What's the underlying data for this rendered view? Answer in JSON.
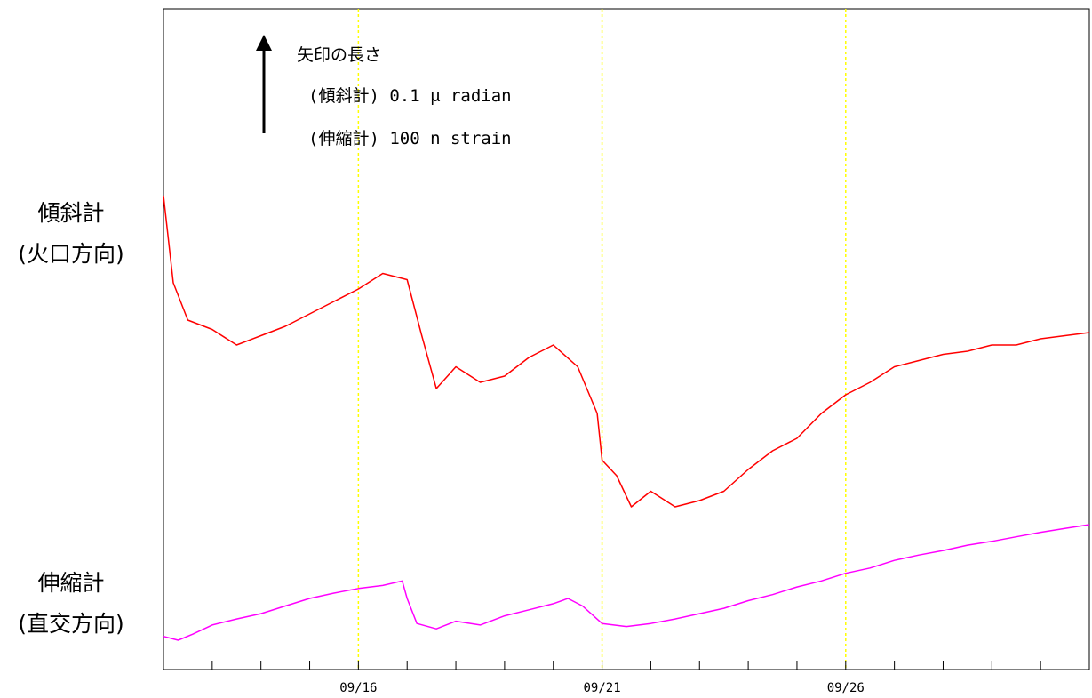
{
  "labels": {
    "tilt_title": "傾斜計",
    "tilt_sub": "(火口方向)",
    "strain_title": "伸縮計",
    "strain_sub": "(直交方向)"
  },
  "legend": {
    "title": "矢印の長さ",
    "tilt_scale": "(傾斜計) 0.1 μ radian",
    "strain_scale": "(伸縮計) 100 n strain"
  },
  "chart_data": {
    "type": "line",
    "title": "",
    "xlabel": "",
    "ylabel": "",
    "x_unit": "day (September)",
    "xlim": [
      12,
      31
    ],
    "major_ticks": [
      16,
      21,
      26
    ],
    "tick_labels": [
      "09/16",
      "09/21",
      "09/26"
    ],
    "grid": "dotted vertical lines at major ticks",
    "colors": {
      "tilt": "#ff0000",
      "strain": "#ff00ff",
      "grid": "#ffff00",
      "axis": "#000000"
    },
    "series": [
      {
        "label_key": "tilt",
        "unit": "μrad (relative)",
        "x": [
          12.0,
          12.2,
          12.5,
          13.0,
          13.5,
          14.0,
          14.5,
          15.0,
          15.5,
          16.0,
          16.5,
          17.0,
          17.3,
          17.6,
          18.0,
          18.5,
          19.0,
          19.5,
          20.0,
          20.5,
          20.9,
          21.0,
          21.3,
          21.6,
          22.0,
          22.5,
          23.0,
          23.5,
          24.0,
          24.5,
          25.0,
          25.5,
          26.0,
          26.5,
          27.0,
          27.5,
          28.0,
          28.5,
          29.0,
          29.5,
          30.0,
          30.5,
          31.0
        ],
        "values": [
          1.0,
          0.72,
          0.6,
          0.57,
          0.52,
          0.55,
          0.58,
          0.62,
          0.66,
          0.7,
          0.75,
          0.73,
          0.55,
          0.38,
          0.45,
          0.4,
          0.42,
          0.48,
          0.52,
          0.45,
          0.3,
          0.15,
          0.1,
          0.0,
          0.05,
          0.0,
          0.02,
          0.05,
          0.12,
          0.18,
          0.22,
          0.3,
          0.36,
          0.4,
          0.45,
          0.47,
          0.49,
          0.5,
          0.52,
          0.52,
          0.54,
          0.55,
          0.56
        ]
      },
      {
        "label_key": "strain",
        "unit": "n strain (relative)",
        "x": [
          12.0,
          12.3,
          12.6,
          13.0,
          13.5,
          14.0,
          14.5,
          15.0,
          15.5,
          16.0,
          16.5,
          16.9,
          17.0,
          17.2,
          17.6,
          18.0,
          18.5,
          19.0,
          19.5,
          20.0,
          20.3,
          20.6,
          21.0,
          21.5,
          22.0,
          22.5,
          23.0,
          23.5,
          24.0,
          24.5,
          25.0,
          25.5,
          26.0,
          26.5,
          27.0,
          27.5,
          28.0,
          28.5,
          29.0,
          29.5,
          30.0,
          30.5,
          31.0
        ],
        "values": [
          0.05,
          0.0,
          0.08,
          0.2,
          0.28,
          0.35,
          0.45,
          0.55,
          0.62,
          0.68,
          0.72,
          0.78,
          0.55,
          0.22,
          0.15,
          0.25,
          0.2,
          0.32,
          0.4,
          0.48,
          0.55,
          0.45,
          0.22,
          0.18,
          0.22,
          0.28,
          0.35,
          0.42,
          0.52,
          0.6,
          0.7,
          0.78,
          0.88,
          0.95,
          1.05,
          1.12,
          1.18,
          1.25,
          1.3,
          1.36,
          1.42,
          1.47,
          1.52
        ]
      }
    ]
  }
}
